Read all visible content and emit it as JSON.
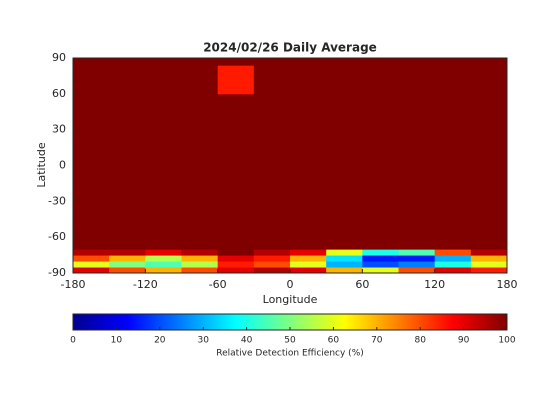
{
  "chart_data": {
    "type": "heatmap",
    "title": "2024/02/26 Daily Average",
    "xlabel": "Longitude",
    "ylabel": "Latitude",
    "xlim": [
      -180,
      180
    ],
    "ylim": [
      -90,
      90
    ],
    "xticks": [
      -180,
      -120,
      -60,
      0,
      60,
      120,
      180
    ],
    "yticks": [
      -90,
      -60,
      -30,
      0,
      30,
      60,
      90
    ],
    "xbins": [
      -180,
      -150,
      -120,
      -90,
      -60,
      -30,
      0,
      30,
      60,
      90,
      120,
      150,
      180
    ],
    "ybins": [
      -90,
      -85,
      -80,
      -75,
      -70,
      60,
      84,
      90
    ],
    "z": [
      [
        90,
        80,
        70,
        80,
        90,
        95,
        90,
        70,
        60,
        80,
        90,
        85
      ],
      [
        60,
        50,
        45,
        55,
        85,
        80,
        60,
        30,
        20,
        25,
        40,
        60
      ],
      [
        80,
        70,
        55,
        70,
        90,
        85,
        70,
        35,
        15,
        15,
        30,
        70
      ],
      [
        95,
        95,
        90,
        95,
        100,
        95,
        90,
        60,
        40,
        45,
        80,
        95
      ],
      [
        100,
        100,
        100,
        100,
        100,
        100,
        100,
        100,
        100,
        100,
        100,
        100
      ],
      [
        100,
        100,
        100,
        100,
        85,
        100,
        100,
        100,
        100,
        100,
        100,
        100
      ],
      [
        100,
        100,
        100,
        100,
        100,
        100,
        100,
        100,
        100,
        100,
        100,
        100
      ]
    ],
    "colorbar": {
      "label": "Relative Detection Efficiency (%)",
      "clim": [
        0,
        100
      ],
      "ticks": [
        0,
        10,
        20,
        30,
        40,
        50,
        60,
        70,
        80,
        90,
        100
      ]
    }
  }
}
